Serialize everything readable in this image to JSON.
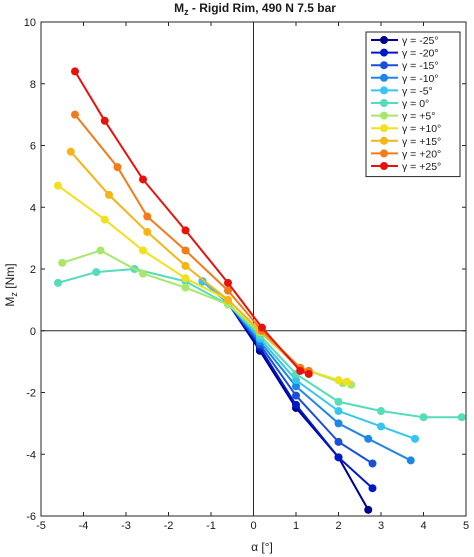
{
  "chart_data": {
    "type": "line",
    "title": "M_z - Rigid Rim,  490 N 7.5 bar",
    "title_main": "M",
    "title_sub": "z",
    "title_rest": " - Rigid Rim,  490 N 7.5 bar",
    "xlabel": "α    [°]",
    "ylabel": "M_z [Nm]",
    "ylabel_main": "M",
    "ylabel_sub": "z",
    "ylabel_rest": " [Nm]",
    "xlim": [
      -5,
      5
    ],
    "ylim": [
      -6,
      10
    ],
    "xticks": [
      -5,
      -4,
      -3,
      -2,
      -1,
      0,
      1,
      2,
      3,
      4,
      5
    ],
    "xtick_labels": [
      "-5",
      "-4",
      "-3",
      "-2",
      "-1",
      "0",
      "1",
      "2",
      "3",
      "4",
      "5"
    ],
    "yticks": [
      -6,
      -4,
      -2,
      0,
      2,
      4,
      6,
      8,
      10
    ],
    "ytick_labels": [
      "-6",
      "-4",
      "-2",
      "0",
      "2",
      "4",
      "6",
      "8",
      "10"
    ],
    "grid": false,
    "legend_position": "top-right",
    "series": [
      {
        "name": "γ = -25°",
        "color": "#00008f",
        "x": [
          -1.2,
          -0.6,
          0.15,
          1.0,
          2.0,
          2.7
        ],
        "y": [
          1.6,
          0.9,
          -0.65,
          -2.5,
          -4.1,
          -5.8
        ]
      },
      {
        "name": "γ = -20°",
        "color": "#0018c8",
        "x": [
          -1.2,
          -0.6,
          0.15,
          1.0,
          2.0,
          2.8
        ],
        "y": [
          1.6,
          0.9,
          -0.55,
          -2.4,
          -4.1,
          -5.1
        ]
      },
      {
        "name": "γ = -15°",
        "color": "#1a4fd8",
        "x": [
          -1.2,
          -0.6,
          0.15,
          1.0,
          2.0,
          2.8
        ],
        "y": [
          1.6,
          0.9,
          -0.45,
          -2.1,
          -3.6,
          -4.3
        ]
      },
      {
        "name": "γ = -10°",
        "color": "#1d86e6",
        "x": [
          -1.2,
          -0.6,
          0.15,
          1.0,
          2.0,
          2.7,
          3.7
        ],
        "y": [
          1.6,
          0.9,
          -0.35,
          -1.8,
          -3.0,
          -3.5,
          -4.2
        ]
      },
      {
        "name": "γ = -5°",
        "color": "#35c6f0",
        "x": [
          -1.2,
          -0.6,
          0.15,
          1.0,
          2.0,
          3.0,
          3.8
        ],
        "y": [
          1.6,
          0.9,
          -0.25,
          -1.6,
          -2.6,
          -3.1,
          -3.5
        ]
      },
      {
        "name": "γ = 0°",
        "color": "#55dcb8",
        "x": [
          -4.6,
          -3.7,
          -2.8,
          -1.6,
          -0.6,
          0.15,
          1.0,
          2.0,
          3.0,
          4.0,
          4.9
        ],
        "y": [
          1.55,
          1.9,
          2.0,
          1.6,
          0.85,
          -0.15,
          -1.4,
          -2.3,
          -2.6,
          -2.8,
          -2.8
        ]
      },
      {
        "name": "γ = +5°",
        "color": "#a7e86a",
        "x": [
          -4.5,
          -3.6,
          -2.6,
          -1.6,
          -0.6,
          0.15,
          1.1,
          2.1,
          2.3
        ],
        "y": [
          2.2,
          2.6,
          1.85,
          1.4,
          0.85,
          -0.05,
          -1.2,
          -1.7,
          -1.75
        ]
      },
      {
        "name": "γ = +10°",
        "color": "#f2e11a",
        "x": [
          -4.6,
          -3.5,
          -2.6,
          -1.6,
          -0.6,
          0.15,
          1.1,
          2.0,
          2.2
        ],
        "y": [
          4.7,
          3.6,
          2.6,
          1.7,
          1.0,
          0.0,
          -1.2,
          -1.6,
          -1.65
        ]
      },
      {
        "name": "γ = +15°",
        "color": "#f6b417",
        "x": [
          -4.3,
          -3.4,
          -2.5,
          -1.6,
          -0.6,
          0.15,
          1.1,
          1.3
        ],
        "y": [
          5.8,
          4.4,
          3.2,
          2.1,
          1.0,
          0.0,
          -1.25,
          -1.35
        ]
      },
      {
        "name": "γ = +20°",
        "color": "#f37b19",
        "x": [
          -4.2,
          -3.2,
          -2.5,
          -1.6,
          -0.6,
          0.2,
          1.1,
          1.3
        ],
        "y": [
          7.0,
          5.3,
          3.7,
          2.6,
          1.3,
          0.0,
          -1.2,
          -1.3
        ]
      },
      {
        "name": "γ = +25°",
        "color": "#e8120d",
        "x": [
          -4.2,
          -3.5,
          -2.6,
          -1.6,
          -0.6,
          0.2,
          1.1,
          1.3
        ],
        "y": [
          8.4,
          6.8,
          4.9,
          3.25,
          1.55,
          0.1,
          -1.3,
          -1.4
        ]
      }
    ]
  }
}
